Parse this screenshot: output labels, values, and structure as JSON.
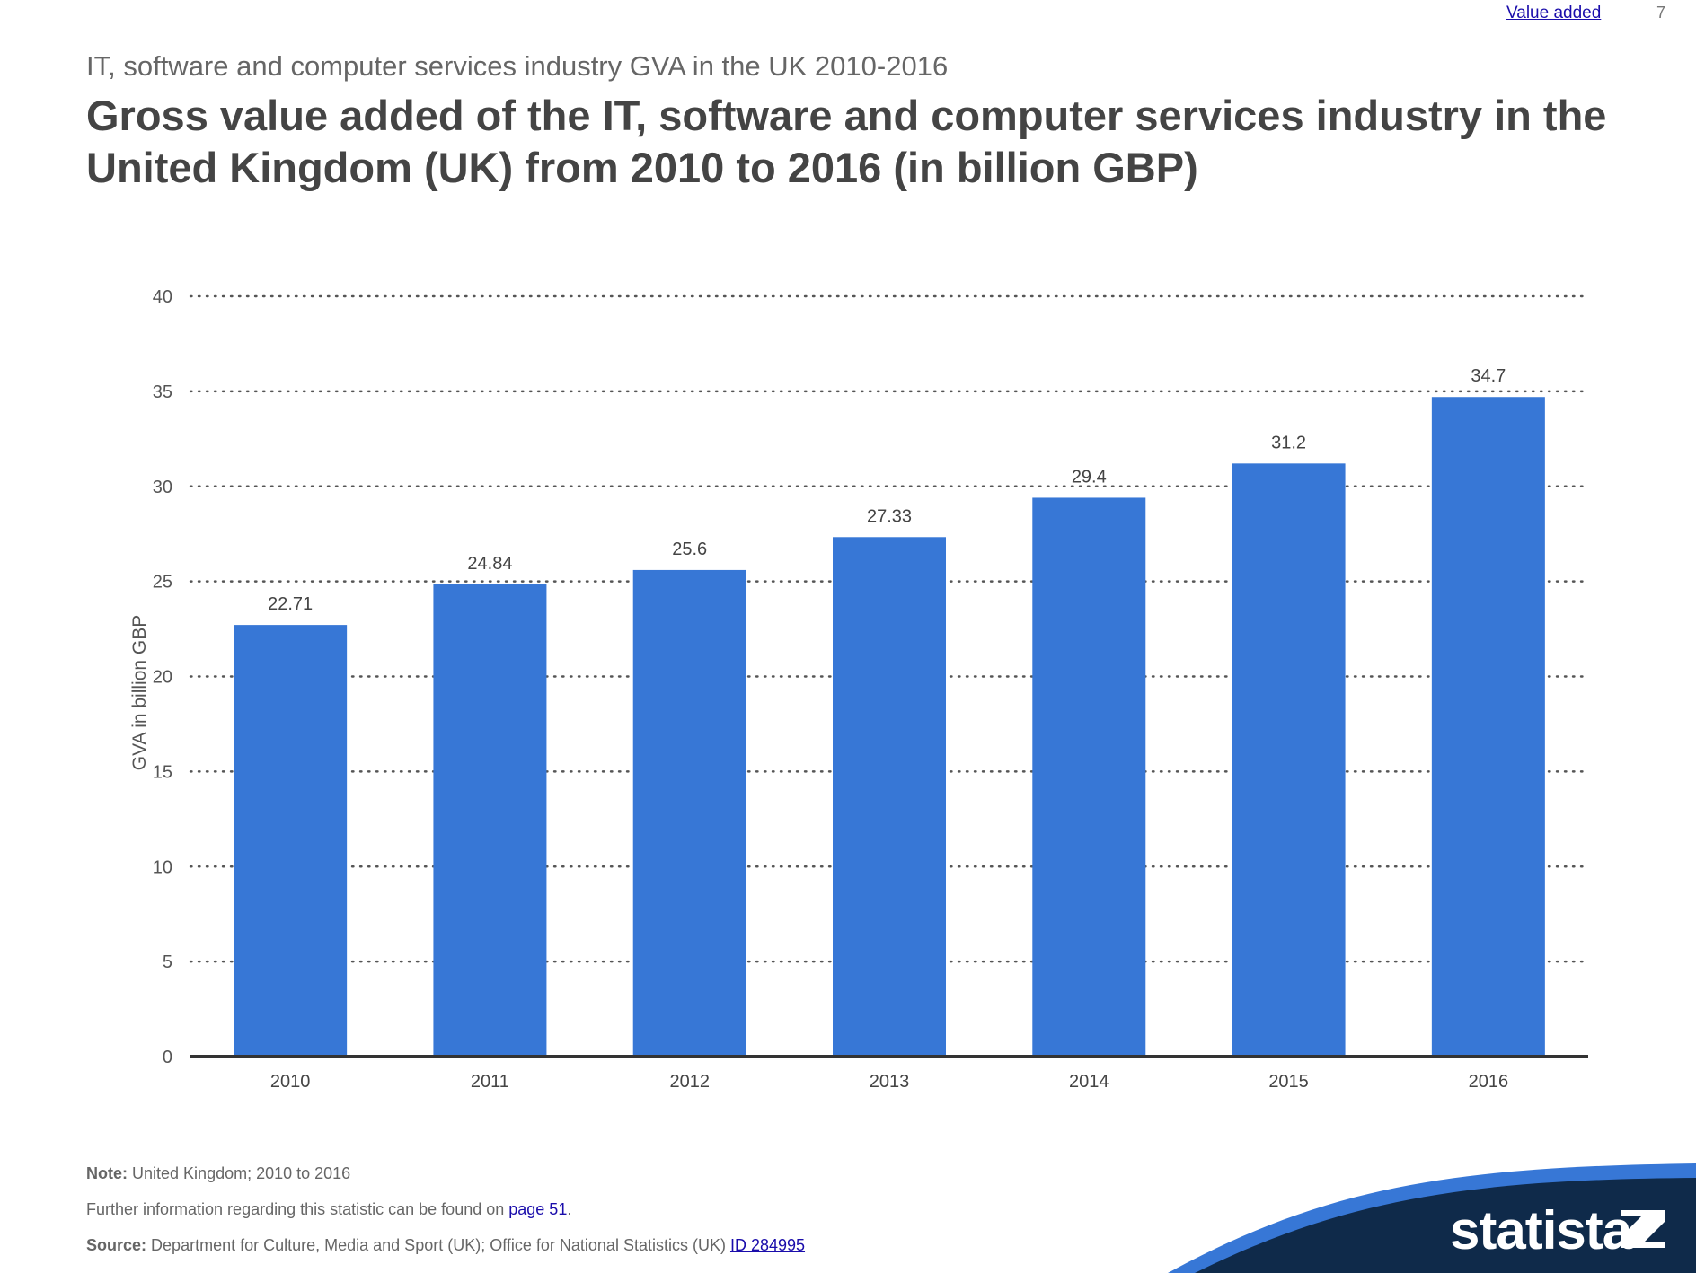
{
  "header": {
    "top_link": "Value added",
    "page_number": "7",
    "subtitle": "IT, software and computer services industry GVA in the UK 2010-2016",
    "title": "Gross value added of the IT, software and computer services industry in the United Kingdom (UK) from 2010 to 2016 (in billion GBP)"
  },
  "chart_data": {
    "type": "bar",
    "categories": [
      "2010",
      "2011",
      "2012",
      "2013",
      "2014",
      "2015",
      "2016"
    ],
    "values": [
      22.71,
      24.84,
      25.6,
      27.33,
      29.4,
      31.2,
      34.7
    ],
    "data_labels": [
      "22.71",
      "24.84",
      "25.6",
      "27.33",
      "29.4",
      "31.2",
      "34.7"
    ],
    "ylabel": "GVA in billion GBP",
    "xlabel": "",
    "ylim": [
      0,
      40
    ],
    "yticks": [
      0,
      5,
      10,
      15,
      20,
      25,
      30,
      35,
      40
    ],
    "grid": "dotted horizontal",
    "bar_color": "#3777d6"
  },
  "footer": {
    "note_label": "Note:",
    "note_text": "United Kingdom; 2010 to 2016",
    "further_info_text": "Further information regarding this statistic can be found on",
    "further_info_link": "page 51",
    "further_info_suffix": ".",
    "source_label": "Source:",
    "source_text": "Department for Culture, Media and Sport (UK); Office for National Statistics (UK)",
    "source_id": "ID 284995"
  },
  "brand": {
    "logo_text": "statista",
    "logo_icon": "statista-mark-icon",
    "swoosh_color": "#3777d6",
    "dark_color": "#0f2a4a"
  }
}
